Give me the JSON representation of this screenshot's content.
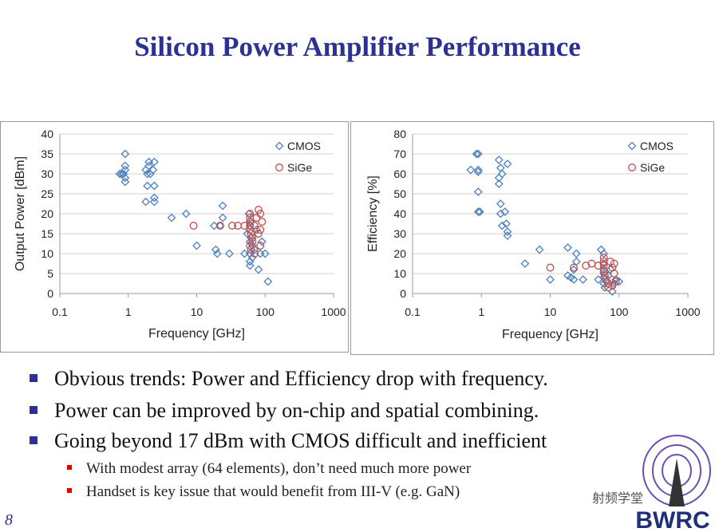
{
  "title": "Silicon Power Amplifier Performance",
  "chart_data": [
    {
      "type": "scatter",
      "xlabel": "Frequency [GHz]",
      "ylabel": "Output Power [dBm]",
      "xscale": "log",
      "xlim": [
        0.1,
        1000
      ],
      "xticks": [
        0.1,
        1,
        10,
        100,
        1000
      ],
      "ylim": [
        0,
        40
      ],
      "yticks": [
        0,
        5,
        10,
        15,
        20,
        25,
        30,
        35,
        40
      ],
      "grid": true,
      "legend": "upper right",
      "series": [
        {
          "name": "CMOS",
          "color": "#4f81bd",
          "marker": "diamond",
          "x": [
            0.8,
            0.9,
            0.9,
            0.85,
            0.9,
            0.9,
            0.75,
            0.9,
            1.8,
            1.8,
            1.9,
            2,
            2,
            2.1,
            2.3,
            2.4,
            2.4,
            2.4,
            2.4,
            1.9,
            4.3,
            7,
            10,
            18,
            19,
            20,
            22,
            24,
            24,
            30,
            50,
            55,
            60,
            60,
            60,
            60,
            62,
            65,
            65,
            70,
            75,
            80,
            85,
            90,
            100,
            110,
            60,
            58,
            62
          ],
          "y": [
            30,
            35,
            32,
            30,
            29,
            28,
            30,
            31,
            23,
            31,
            30,
            33,
            32,
            30,
            31,
            33,
            24,
            23,
            27,
            27,
            19,
            20,
            12,
            17,
            11,
            10,
            17,
            22,
            19,
            10,
            10,
            15,
            13,
            10,
            8,
            7,
            18,
            12,
            9,
            11,
            16,
            6,
            10,
            13,
            10,
            3,
            17,
            20,
            14
          ]
        },
        {
          "name": "SiGe",
          "color": "#c0504d",
          "marker": "circle",
          "x": [
            9,
            22,
            33,
            40,
            50,
            60,
            60,
            60,
            60,
            62,
            65,
            60,
            62,
            65,
            70,
            75,
            80,
            85,
            90,
            85,
            80,
            85,
            60,
            70
          ],
          "y": [
            17,
            17,
            17,
            17,
            17,
            20,
            19,
            18,
            16,
            15,
            14,
            12,
            11,
            13,
            17,
            19,
            21,
            20,
            18,
            16,
            15,
            12,
            17,
            10
          ]
        }
      ]
    },
    {
      "type": "scatter",
      "xlabel": "Frequency [GHz]",
      "ylabel": "Efficiency [%]",
      "xscale": "log",
      "xlim": [
        0.1,
        1000
      ],
      "xticks": [
        0.1,
        1,
        10,
        100,
        1000
      ],
      "ylim": [
        0,
        80
      ],
      "yticks": [
        0,
        10,
        20,
        30,
        40,
        50,
        60,
        70,
        80
      ],
      "grid": true,
      "legend": "upper right",
      "series": [
        {
          "name": "CMOS",
          "color": "#4f81bd",
          "marker": "diamond",
          "x": [
            0.7,
            0.85,
            0.9,
            0.9,
            0.9,
            0.9,
            0.9,
            0.95,
            1.8,
            1.8,
            1.8,
            1.9,
            2,
            1.9,
            1.9,
            2.2,
            2.4,
            2.3,
            2.4,
            2.4,
            2,
            4.3,
            7,
            10,
            18,
            18,
            20,
            22,
            22,
            24,
            24,
            30,
            50,
            55,
            60,
            60,
            60,
            60,
            60,
            60,
            62,
            65,
            70,
            75,
            80,
            85,
            90,
            100
          ],
          "y": [
            62,
            70,
            70,
            61,
            62,
            51,
            41,
            41,
            67,
            58,
            55,
            63,
            60,
            45,
            40,
            41,
            65,
            35,
            31,
            29,
            34,
            15,
            22,
            7,
            23,
            9,
            8,
            7,
            12,
            20,
            16,
            7,
            7,
            22,
            20,
            15,
            12,
            10,
            8,
            5,
            3,
            6,
            9,
            12,
            1,
            5,
            7,
            6
          ]
        },
        {
          "name": "SiGe",
          "color": "#c0504d",
          "marker": "circle",
          "x": [
            10,
            22,
            33,
            40,
            50,
            60,
            60,
            60,
            60,
            62,
            65,
            70,
            75,
            80,
            85,
            85,
            80,
            90,
            70
          ],
          "y": [
            13,
            13,
            14,
            15,
            14,
            18,
            16,
            14,
            11,
            9,
            7,
            5,
            16,
            13,
            15,
            10,
            4,
            6,
            3
          ]
        }
      ]
    }
  ],
  "bullets": [
    "Obvious trends:  Power and Efficiency drop with frequency.",
    "Power can be improved by on-chip and spatial combining.",
    "Going beyond 17 dBm with CMOS difficult and inefficient"
  ],
  "sub_bullets": [
    "With modest array (64 elements), don’t need much more power",
    "Handset is key issue that would benefit from III-V (e.g. GaN)"
  ],
  "page_number": "8",
  "watermark": "射频学堂",
  "logo": "BWRC"
}
